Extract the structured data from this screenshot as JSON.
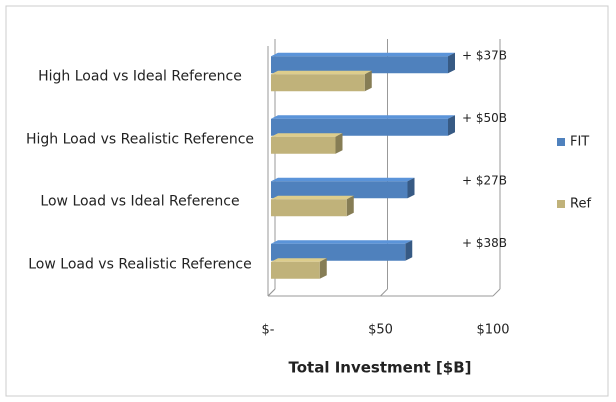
{
  "chart_data": {
    "type": "bar",
    "orientation": "horizontal",
    "categories": [
      "High Load vs Ideal Reference",
      "High Load vs Realistic Reference",
      "Low Load vs Ideal Reference",
      "Low Load vs Realistic Reference"
    ],
    "series": [
      {
        "name": "FIT",
        "color": "#4f81bd",
        "values": [
          80,
          80,
          62,
          61
        ]
      },
      {
        "name": "Ref",
        "color": "#c0b27a",
        "values": [
          43,
          30,
          35,
          23
        ]
      }
    ],
    "annotations": [
      "+ $37B",
      "+ $50B",
      "+ $27B",
      "+ $38B"
    ],
    "xlabel": "Total Investment [$B]",
    "xlim": [
      0,
      100
    ],
    "xticks": [
      {
        "value": 0,
        "label": "$-"
      },
      {
        "value": 50,
        "label": "$50"
      },
      {
        "value": 100,
        "label": "$100"
      }
    ],
    "grid": true,
    "legend": "right"
  }
}
